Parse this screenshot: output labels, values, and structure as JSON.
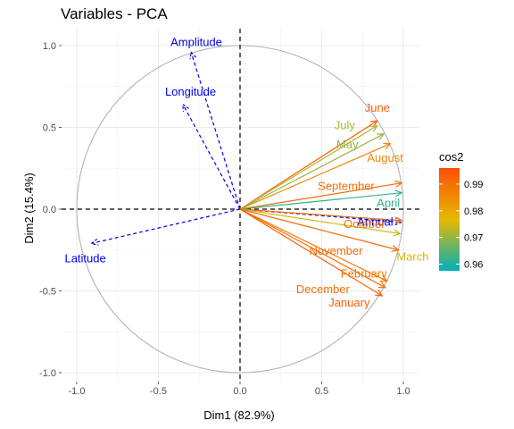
{
  "chart_data": {
    "type": "scatter",
    "title": "Variables - PCA",
    "xlabel": "Dim1 (82.9%)",
    "ylabel": "Dim2 (15.4%)",
    "xlim": [
      -1.0,
      1.0
    ],
    "ylim": [
      -1.0,
      1.0
    ],
    "x_ticks": [
      -1.0,
      -0.5,
      0.0,
      0.5,
      1.0
    ],
    "x_tick_labels": [
      "-1.0",
      "-0.5",
      "0.0",
      "0.5",
      "1.0"
    ],
    "y_ticks": [
      -1.0,
      -0.5,
      0.0,
      0.5,
      1.0
    ],
    "y_tick_labels": [
      "-1.0",
      "-0.5",
      "0.0",
      "0.5",
      "1.0"
    ],
    "grid": true,
    "correlation_circle": true,
    "active_variables": [
      {
        "name": "June",
        "x": 0.84,
        "y": 0.54,
        "cos2": 0.993
      },
      {
        "name": "July",
        "x": 0.84,
        "y": 0.51,
        "cos2": 0.972
      },
      {
        "name": "May",
        "x": 0.88,
        "y": 0.46,
        "cos2": 0.97
      },
      {
        "name": "August",
        "x": 0.92,
        "y": 0.4,
        "cos2": 0.986
      },
      {
        "name": "September",
        "x": 0.99,
        "y": 0.16,
        "cos2": 0.99
      },
      {
        "name": "April",
        "x": 0.99,
        "y": 0.1,
        "cos2": 0.962
      },
      {
        "name": "October",
        "x": 0.99,
        "y": -0.07,
        "cos2": 0.99
      },
      {
        "name": "March",
        "x": 0.98,
        "y": -0.15,
        "cos2": 0.975
      },
      {
        "name": "November",
        "x": 0.97,
        "y": -0.25,
        "cos2": 0.991
      },
      {
        "name": "February",
        "x": 0.9,
        "y": -0.44,
        "cos2": 0.989
      },
      {
        "name": "December",
        "x": 0.89,
        "y": -0.48,
        "cos2": 0.99
      },
      {
        "name": "January",
        "x": 0.87,
        "y": -0.53,
        "cos2": 0.993
      }
    ],
    "supplementary_variables": [
      {
        "name": "Amplitude",
        "x": -0.3,
        "y": 0.96
      },
      {
        "name": "Longitude",
        "x": -0.35,
        "y": 0.64
      },
      {
        "name": "Latitude",
        "x": -0.91,
        "y": -0.21
      },
      {
        "name": "Annual",
        "x": 0.99,
        "y": -0.08
      }
    ],
    "supplementary_color": "#0000ee",
    "legend": {
      "title": "cos2",
      "position": "right",
      "ticks": [
        0.96,
        0.97,
        0.98,
        0.99
      ],
      "tick_labels": [
        "0.96",
        "0.97",
        "0.98",
        "0.99"
      ],
      "range": [
        0.9575,
        0.996
      ],
      "gradient": [
        "#00AFBB",
        "#E7B800",
        "#FC4E07"
      ]
    }
  }
}
